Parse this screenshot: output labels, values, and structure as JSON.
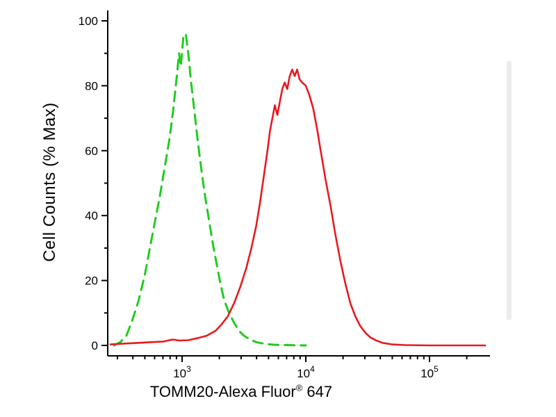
{
  "chart_data": {
    "type": "line",
    "title": "",
    "ylabel": "Cell Counts (% Max)",
    "xlabel_main": "TOMM20-Alexa Fluor",
    "xlabel_sup": "®",
    "xlabel_suffix": " 647",
    "x_scale": "log10",
    "x_range_log10": [
      2.42,
      5.47
    ],
    "ylim": [
      0,
      100
    ],
    "grid": false,
    "legend": "none",
    "x_tick_base": "10",
    "x_major_exponents": [
      3,
      4,
      5
    ],
    "y_major_ticks": [
      0,
      20,
      40,
      60,
      80,
      100
    ],
    "y_minor_ticks": [
      10,
      30,
      50,
      70,
      90
    ],
    "series": [
      {
        "name": "green-dashed",
        "color": "#1fcc1f",
        "style": "dashed",
        "points": [
          [
            2.45,
            0
          ],
          [
            2.5,
            1
          ],
          [
            2.55,
            3
          ],
          [
            2.6,
            8
          ],
          [
            2.65,
            14
          ],
          [
            2.7,
            22
          ],
          [
            2.74,
            30
          ],
          [
            2.78,
            38
          ],
          [
            2.82,
            46
          ],
          [
            2.86,
            55
          ],
          [
            2.9,
            64
          ],
          [
            2.93,
            73
          ],
          [
            2.96,
            84
          ],
          [
            2.975,
            90
          ],
          [
            2.99,
            86
          ],
          [
            3.01,
            95
          ],
          [
            3.03,
            96
          ],
          [
            3.05,
            90
          ],
          [
            3.07,
            82
          ],
          [
            3.1,
            72
          ],
          [
            3.13,
            62
          ],
          [
            3.16,
            53
          ],
          [
            3.19,
            45
          ],
          [
            3.22,
            38
          ],
          [
            3.25,
            31
          ],
          [
            3.28,
            25
          ],
          [
            3.31,
            19
          ],
          [
            3.34,
            14
          ],
          [
            3.38,
            10
          ],
          [
            3.42,
            7
          ],
          [
            3.46,
            4.5
          ],
          [
            3.5,
            3
          ],
          [
            3.55,
            1.8
          ],
          [
            3.6,
            1
          ],
          [
            3.68,
            0.4
          ],
          [
            3.75,
            0.2
          ],
          [
            3.85,
            0.1
          ],
          [
            4.0,
            0
          ]
        ]
      },
      {
        "name": "red-solid",
        "color": "#e8191f",
        "style": "solid",
        "points": [
          [
            2.42,
            0.3
          ],
          [
            2.55,
            0.6
          ],
          [
            2.65,
            0.8
          ],
          [
            2.75,
            1.0
          ],
          [
            2.85,
            1.2
          ],
          [
            2.92,
            1.8
          ],
          [
            2.98,
            1.5
          ],
          [
            3.05,
            1.6
          ],
          [
            3.12,
            2.2
          ],
          [
            3.2,
            3
          ],
          [
            3.27,
            4.5
          ],
          [
            3.32,
            6.5
          ],
          [
            3.37,
            9
          ],
          [
            3.42,
            13
          ],
          [
            3.47,
            18
          ],
          [
            3.52,
            24
          ],
          [
            3.56,
            30
          ],
          [
            3.6,
            37
          ],
          [
            3.63,
            44
          ],
          [
            3.66,
            52
          ],
          [
            3.69,
            60
          ],
          [
            3.71,
            66
          ],
          [
            3.73,
            70
          ],
          [
            3.75,
            74
          ],
          [
            3.77,
            71
          ],
          [
            3.79,
            75
          ],
          [
            3.81,
            79
          ],
          [
            3.83,
            81
          ],
          [
            3.85,
            79
          ],
          [
            3.87,
            83
          ],
          [
            3.89,
            85
          ],
          [
            3.91,
            83
          ],
          [
            3.93,
            85
          ],
          [
            3.95,
            82
          ],
          [
            3.97,
            81
          ],
          [
            4.0,
            80
          ],
          [
            4.03,
            77
          ],
          [
            4.06,
            73
          ],
          [
            4.09,
            67
          ],
          [
            4.12,
            60
          ],
          [
            4.16,
            51
          ],
          [
            4.2,
            43
          ],
          [
            4.24,
            34
          ],
          [
            4.28,
            26
          ],
          [
            4.32,
            19
          ],
          [
            4.36,
            13
          ],
          [
            4.4,
            9
          ],
          [
            4.44,
            6
          ],
          [
            4.48,
            4
          ],
          [
            4.52,
            2.5
          ],
          [
            4.57,
            1.5
          ],
          [
            4.62,
            0.8
          ],
          [
            4.7,
            0.3
          ],
          [
            4.8,
            0.1
          ],
          [
            5.0,
            0
          ],
          [
            5.45,
            0
          ]
        ]
      }
    ]
  }
}
